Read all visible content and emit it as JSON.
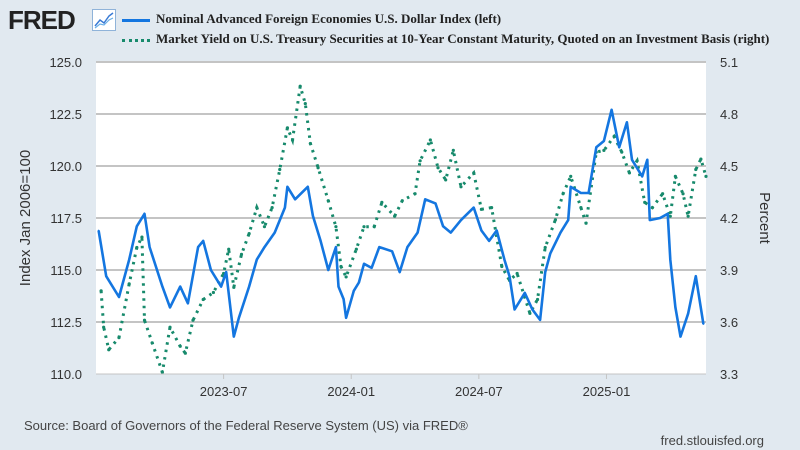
{
  "header": {
    "logo": "FRED",
    "logo_icon": "chart-line-icon"
  },
  "colors": {
    "index": "#1476e0",
    "yield": "#178a6c",
    "grid": "#c4c4c4"
  },
  "source": "Source: Board of Governors of the Federal Reserve System (US) via FRED®",
  "url": "fred.stlouisfed.org",
  "chart_data": {
    "type": "line",
    "legend": [
      "Nominal Advanced Foreign Economies U.S. Dollar Index (left)",
      "Market Yield on U.S. Treasury Securities at 10-Year Constant Maturity, Quoted on an Investment Basis (right)"
    ],
    "legend_placement": "top",
    "xlim": [
      2023.0,
      2025.39
    ],
    "x_ticks": [
      {
        "x": 2023.5,
        "label": "2023-07"
      },
      {
        "x": 2024.0,
        "label": "2024-01"
      },
      {
        "x": 2024.5,
        "label": "2024-07"
      },
      {
        "x": 2025.0,
        "label": "2025-01"
      }
    ],
    "y_left": {
      "label": "Index Jan 2006=100",
      "lim": [
        110,
        125
      ],
      "ticks": [
        "110.0",
        "112.5",
        "115.0",
        "117.5",
        "120.0",
        "122.5",
        "125.0"
      ]
    },
    "y_right": {
      "label": "Percent",
      "lim": [
        3.3,
        5.1
      ],
      "ticks": [
        "3.3",
        "3.6",
        "3.9",
        "4.2",
        "4.5",
        "4.8",
        "5.1"
      ]
    },
    "grid": true,
    "series": [
      {
        "name": "Nominal Advanced Foreign Economies U.S. Dollar Index",
        "axis": "left",
        "style": "solid",
        "points": [
          [
            2023.01,
            116.9
          ],
          [
            2023.04,
            114.7
          ],
          [
            2023.09,
            113.7
          ],
          [
            2023.13,
            115.5
          ],
          [
            2023.16,
            117.1
          ],
          [
            2023.19,
            117.7
          ],
          [
            2023.21,
            116.1
          ],
          [
            2023.26,
            114.2
          ],
          [
            2023.29,
            113.2
          ],
          [
            2023.33,
            114.2
          ],
          [
            2023.36,
            113.4
          ],
          [
            2023.4,
            116.1
          ],
          [
            2023.42,
            116.4
          ],
          [
            2023.45,
            115.0
          ],
          [
            2023.49,
            114.2
          ],
          [
            2023.51,
            114.9
          ],
          [
            2023.54,
            111.8
          ],
          [
            2023.56,
            112.7
          ],
          [
            2023.6,
            114.2
          ],
          [
            2023.63,
            115.5
          ],
          [
            2023.66,
            116.1
          ],
          [
            2023.7,
            116.8
          ],
          [
            2023.74,
            118.0
          ],
          [
            2023.75,
            119.0
          ],
          [
            2023.78,
            118.4
          ],
          [
            2023.83,
            119.0
          ],
          [
            2023.85,
            117.6
          ],
          [
            2023.88,
            116.4
          ],
          [
            2023.91,
            115.0
          ],
          [
            2023.94,
            116.1
          ],
          [
            2023.95,
            114.2
          ],
          [
            2023.97,
            113.6
          ],
          [
            2023.98,
            112.7
          ],
          [
            2024.01,
            114.0
          ],
          [
            2024.03,
            114.4
          ],
          [
            2024.05,
            115.3
          ],
          [
            2024.08,
            115.1
          ],
          [
            2024.11,
            116.1
          ],
          [
            2024.16,
            115.9
          ],
          [
            2024.19,
            114.9
          ],
          [
            2024.22,
            116.1
          ],
          [
            2024.26,
            116.8
          ],
          [
            2024.29,
            118.4
          ],
          [
            2024.33,
            118.2
          ],
          [
            2024.36,
            117.1
          ],
          [
            2024.39,
            116.8
          ],
          [
            2024.43,
            117.4
          ],
          [
            2024.48,
            118.0
          ],
          [
            2024.51,
            116.9
          ],
          [
            2024.54,
            116.4
          ],
          [
            2024.57,
            116.9
          ],
          [
            2024.6,
            115.5
          ],
          [
            2024.62,
            114.7
          ],
          [
            2024.64,
            113.1
          ],
          [
            2024.68,
            113.9
          ],
          [
            2024.71,
            113.1
          ],
          [
            2024.74,
            112.6
          ],
          [
            2024.76,
            114.9
          ],
          [
            2024.78,
            115.8
          ],
          [
            2024.82,
            116.8
          ],
          [
            2024.85,
            117.4
          ],
          [
            2024.86,
            119.0
          ],
          [
            2024.9,
            118.7
          ],
          [
            2024.93,
            118.7
          ],
          [
            2024.96,
            120.9
          ],
          [
            2024.99,
            121.2
          ],
          [
            2025.02,
            122.7
          ],
          [
            2025.05,
            120.9
          ],
          [
            2025.08,
            122.1
          ],
          [
            2025.1,
            120.3
          ],
          [
            2025.14,
            119.5
          ],
          [
            2025.16,
            120.3
          ],
          [
            2025.17,
            117.4
          ],
          [
            2025.21,
            117.5
          ],
          [
            2025.24,
            117.7
          ],
          [
            2025.25,
            115.5
          ],
          [
            2025.27,
            113.2
          ],
          [
            2025.29,
            111.8
          ],
          [
            2025.32,
            112.9
          ],
          [
            2025.35,
            114.7
          ],
          [
            2025.38,
            112.4
          ]
        ]
      },
      {
        "name": "Market Yield on U.S. Treasury Securities at 10-Year Constant Maturity",
        "axis": "right",
        "style": "dotted",
        "points": [
          [
            2023.02,
            3.78
          ],
          [
            2023.03,
            3.57
          ],
          [
            2023.05,
            3.44
          ],
          [
            2023.09,
            3.51
          ],
          [
            2023.13,
            3.82
          ],
          [
            2023.16,
            4.03
          ],
          [
            2023.18,
            4.09
          ],
          [
            2023.19,
            3.61
          ],
          [
            2023.22,
            3.48
          ],
          [
            2023.26,
            3.31
          ],
          [
            2023.29,
            3.57
          ],
          [
            2023.33,
            3.46
          ],
          [
            2023.35,
            3.42
          ],
          [
            2023.38,
            3.61
          ],
          [
            2023.42,
            3.73
          ],
          [
            2023.46,
            3.77
          ],
          [
            2023.5,
            3.88
          ],
          [
            2023.52,
            4.02
          ],
          [
            2023.54,
            3.8
          ],
          [
            2023.57,
            3.99
          ],
          [
            2023.6,
            4.11
          ],
          [
            2023.63,
            4.26
          ],
          [
            2023.66,
            4.15
          ],
          [
            2023.69,
            4.26
          ],
          [
            2023.72,
            4.48
          ],
          [
            2023.75,
            4.72
          ],
          [
            2023.77,
            4.65
          ],
          [
            2023.8,
            4.96
          ],
          [
            2023.82,
            4.86
          ],
          [
            2023.84,
            4.63
          ],
          [
            2023.87,
            4.49
          ],
          [
            2023.91,
            4.3
          ],
          [
            2023.94,
            4.15
          ],
          [
            2023.96,
            3.92
          ],
          [
            2023.98,
            3.86
          ],
          [
            2024.02,
            4.02
          ],
          [
            2024.05,
            4.15
          ],
          [
            2024.09,
            4.15
          ],
          [
            2024.12,
            4.29
          ],
          [
            2024.17,
            4.21
          ],
          [
            2024.2,
            4.3
          ],
          [
            2024.25,
            4.34
          ],
          [
            2024.27,
            4.53
          ],
          [
            2024.31,
            4.65
          ],
          [
            2024.34,
            4.49
          ],
          [
            2024.37,
            4.42
          ],
          [
            2024.4,
            4.59
          ],
          [
            2024.43,
            4.38
          ],
          [
            2024.48,
            4.46
          ],
          [
            2024.51,
            4.25
          ],
          [
            2024.55,
            4.26
          ],
          [
            2024.59,
            3.92
          ],
          [
            2024.62,
            3.84
          ],
          [
            2024.65,
            3.88
          ],
          [
            2024.7,
            3.65
          ],
          [
            2024.73,
            3.73
          ],
          [
            2024.76,
            4.03
          ],
          [
            2024.8,
            4.19
          ],
          [
            2024.83,
            4.34
          ],
          [
            2024.86,
            4.44
          ],
          [
            2024.9,
            4.26
          ],
          [
            2024.92,
            4.17
          ],
          [
            2024.96,
            4.58
          ],
          [
            2024.99,
            4.59
          ],
          [
            2025.03,
            4.67
          ],
          [
            2025.06,
            4.58
          ],
          [
            2025.09,
            4.46
          ],
          [
            2025.12,
            4.53
          ],
          [
            2025.15,
            4.29
          ],
          [
            2025.18,
            4.26
          ],
          [
            2025.22,
            4.34
          ],
          [
            2025.25,
            4.21
          ],
          [
            2025.27,
            4.44
          ],
          [
            2025.3,
            4.34
          ],
          [
            2025.32,
            4.21
          ],
          [
            2025.35,
            4.48
          ],
          [
            2025.37,
            4.54
          ],
          [
            2025.39,
            4.44
          ]
        ]
      }
    ]
  }
}
